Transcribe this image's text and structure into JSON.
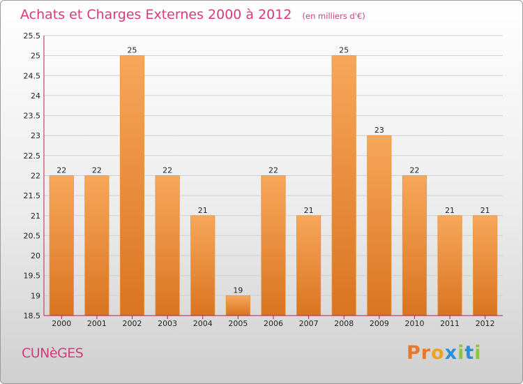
{
  "header": {
    "title": "Achats et Charges Externes 2000 à 2012",
    "unit": "(en milliers d'€)"
  },
  "footer": {
    "city": "CUNèGES",
    "logo": "Proxiti"
  },
  "colors": {
    "title": "#d63a7a",
    "bar_light": "#f7a75a",
    "bar_dark": "#d97420",
    "axis": "#c2185b",
    "logo_letters": [
      "#e8762b",
      "#e8762b",
      "#f0a020",
      "#2b8fd6",
      "#8bc53f",
      "#2b8fd6",
      "#8bc53f"
    ]
  },
  "chart_data": {
    "type": "bar",
    "title": "Achats et Charges Externes 2000 à 2012",
    "subtitle": "(en milliers d'€)",
    "categories": [
      "2000",
      "2001",
      "2002",
      "2003",
      "2004",
      "2005",
      "2006",
      "2007",
      "2008",
      "2009",
      "2010",
      "2011",
      "2012"
    ],
    "values": [
      22,
      22,
      25,
      22,
      21,
      19,
      22,
      21,
      25,
      23,
      22,
      21,
      21
    ],
    "ylim": [
      18.5,
      25.5
    ],
    "yticks": [
      "18.5",
      "19",
      "19.5",
      "20",
      "20.5",
      "21",
      "21.5",
      "22",
      "22.5",
      "23",
      "23.5",
      "24",
      "24.5",
      "25",
      "25.5"
    ],
    "grid": true,
    "legend": "none"
  }
}
